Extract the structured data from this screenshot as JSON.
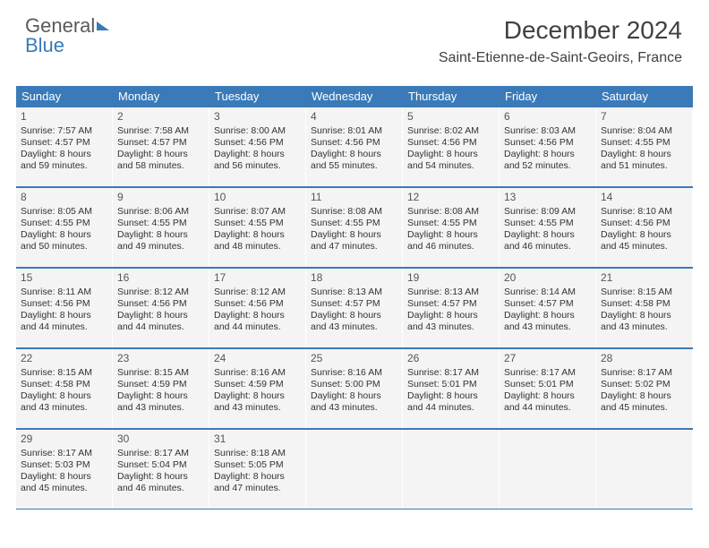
{
  "logo": {
    "part1": "General",
    "part2": "Blue"
  },
  "title": "December 2024",
  "subtitle": "Saint-Etienne-de-Saint-Geoirs, France",
  "dow": [
    "Sunday",
    "Monday",
    "Tuesday",
    "Wednesday",
    "Thursday",
    "Friday",
    "Saturday"
  ],
  "colors": {
    "header_bg": "#3a7ab8",
    "header_text": "#ffffff",
    "cell_bg": "#f4f4f4",
    "rule": "#3a7ab8",
    "text": "#333333"
  },
  "weeks": [
    [
      {
        "n": "1",
        "sr": "Sunrise: 7:57 AM",
        "ss": "Sunset: 4:57 PM",
        "d1": "Daylight: 8 hours",
        "d2": "and 59 minutes."
      },
      {
        "n": "2",
        "sr": "Sunrise: 7:58 AM",
        "ss": "Sunset: 4:57 PM",
        "d1": "Daylight: 8 hours",
        "d2": "and 58 minutes."
      },
      {
        "n": "3",
        "sr": "Sunrise: 8:00 AM",
        "ss": "Sunset: 4:56 PM",
        "d1": "Daylight: 8 hours",
        "d2": "and 56 minutes."
      },
      {
        "n": "4",
        "sr": "Sunrise: 8:01 AM",
        "ss": "Sunset: 4:56 PM",
        "d1": "Daylight: 8 hours",
        "d2": "and 55 minutes."
      },
      {
        "n": "5",
        "sr": "Sunrise: 8:02 AM",
        "ss": "Sunset: 4:56 PM",
        "d1": "Daylight: 8 hours",
        "d2": "and 54 minutes."
      },
      {
        "n": "6",
        "sr": "Sunrise: 8:03 AM",
        "ss": "Sunset: 4:56 PM",
        "d1": "Daylight: 8 hours",
        "d2": "and 52 minutes."
      },
      {
        "n": "7",
        "sr": "Sunrise: 8:04 AM",
        "ss": "Sunset: 4:55 PM",
        "d1": "Daylight: 8 hours",
        "d2": "and 51 minutes."
      }
    ],
    [
      {
        "n": "8",
        "sr": "Sunrise: 8:05 AM",
        "ss": "Sunset: 4:55 PM",
        "d1": "Daylight: 8 hours",
        "d2": "and 50 minutes."
      },
      {
        "n": "9",
        "sr": "Sunrise: 8:06 AM",
        "ss": "Sunset: 4:55 PM",
        "d1": "Daylight: 8 hours",
        "d2": "and 49 minutes."
      },
      {
        "n": "10",
        "sr": "Sunrise: 8:07 AM",
        "ss": "Sunset: 4:55 PM",
        "d1": "Daylight: 8 hours",
        "d2": "and 48 minutes."
      },
      {
        "n": "11",
        "sr": "Sunrise: 8:08 AM",
        "ss": "Sunset: 4:55 PM",
        "d1": "Daylight: 8 hours",
        "d2": "and 47 minutes."
      },
      {
        "n": "12",
        "sr": "Sunrise: 8:08 AM",
        "ss": "Sunset: 4:55 PM",
        "d1": "Daylight: 8 hours",
        "d2": "and 46 minutes."
      },
      {
        "n": "13",
        "sr": "Sunrise: 8:09 AM",
        "ss": "Sunset: 4:55 PM",
        "d1": "Daylight: 8 hours",
        "d2": "and 46 minutes."
      },
      {
        "n": "14",
        "sr": "Sunrise: 8:10 AM",
        "ss": "Sunset: 4:56 PM",
        "d1": "Daylight: 8 hours",
        "d2": "and 45 minutes."
      }
    ],
    [
      {
        "n": "15",
        "sr": "Sunrise: 8:11 AM",
        "ss": "Sunset: 4:56 PM",
        "d1": "Daylight: 8 hours",
        "d2": "and 44 minutes."
      },
      {
        "n": "16",
        "sr": "Sunrise: 8:12 AM",
        "ss": "Sunset: 4:56 PM",
        "d1": "Daylight: 8 hours",
        "d2": "and 44 minutes."
      },
      {
        "n": "17",
        "sr": "Sunrise: 8:12 AM",
        "ss": "Sunset: 4:56 PM",
        "d1": "Daylight: 8 hours",
        "d2": "and 44 minutes."
      },
      {
        "n": "18",
        "sr": "Sunrise: 8:13 AM",
        "ss": "Sunset: 4:57 PM",
        "d1": "Daylight: 8 hours",
        "d2": "and 43 minutes."
      },
      {
        "n": "19",
        "sr": "Sunrise: 8:13 AM",
        "ss": "Sunset: 4:57 PM",
        "d1": "Daylight: 8 hours",
        "d2": "and 43 minutes."
      },
      {
        "n": "20",
        "sr": "Sunrise: 8:14 AM",
        "ss": "Sunset: 4:57 PM",
        "d1": "Daylight: 8 hours",
        "d2": "and 43 minutes."
      },
      {
        "n": "21",
        "sr": "Sunrise: 8:15 AM",
        "ss": "Sunset: 4:58 PM",
        "d1": "Daylight: 8 hours",
        "d2": "and 43 minutes."
      }
    ],
    [
      {
        "n": "22",
        "sr": "Sunrise: 8:15 AM",
        "ss": "Sunset: 4:58 PM",
        "d1": "Daylight: 8 hours",
        "d2": "and 43 minutes."
      },
      {
        "n": "23",
        "sr": "Sunrise: 8:15 AM",
        "ss": "Sunset: 4:59 PM",
        "d1": "Daylight: 8 hours",
        "d2": "and 43 minutes."
      },
      {
        "n": "24",
        "sr": "Sunrise: 8:16 AM",
        "ss": "Sunset: 4:59 PM",
        "d1": "Daylight: 8 hours",
        "d2": "and 43 minutes."
      },
      {
        "n": "25",
        "sr": "Sunrise: 8:16 AM",
        "ss": "Sunset: 5:00 PM",
        "d1": "Daylight: 8 hours",
        "d2": "and 43 minutes."
      },
      {
        "n": "26",
        "sr": "Sunrise: 8:17 AM",
        "ss": "Sunset: 5:01 PM",
        "d1": "Daylight: 8 hours",
        "d2": "and 44 minutes."
      },
      {
        "n": "27",
        "sr": "Sunrise: 8:17 AM",
        "ss": "Sunset: 5:01 PM",
        "d1": "Daylight: 8 hours",
        "d2": "and 44 minutes."
      },
      {
        "n": "28",
        "sr": "Sunrise: 8:17 AM",
        "ss": "Sunset: 5:02 PM",
        "d1": "Daylight: 8 hours",
        "d2": "and 45 minutes."
      }
    ],
    [
      {
        "n": "29",
        "sr": "Sunrise: 8:17 AM",
        "ss": "Sunset: 5:03 PM",
        "d1": "Daylight: 8 hours",
        "d2": "and 45 minutes."
      },
      {
        "n": "30",
        "sr": "Sunrise: 8:17 AM",
        "ss": "Sunset: 5:04 PM",
        "d1": "Daylight: 8 hours",
        "d2": "and 46 minutes."
      },
      {
        "n": "31",
        "sr": "Sunrise: 8:18 AM",
        "ss": "Sunset: 5:05 PM",
        "d1": "Daylight: 8 hours",
        "d2": "and 47 minutes."
      },
      {
        "empty": true
      },
      {
        "empty": true
      },
      {
        "empty": true
      },
      {
        "empty": true
      }
    ]
  ]
}
